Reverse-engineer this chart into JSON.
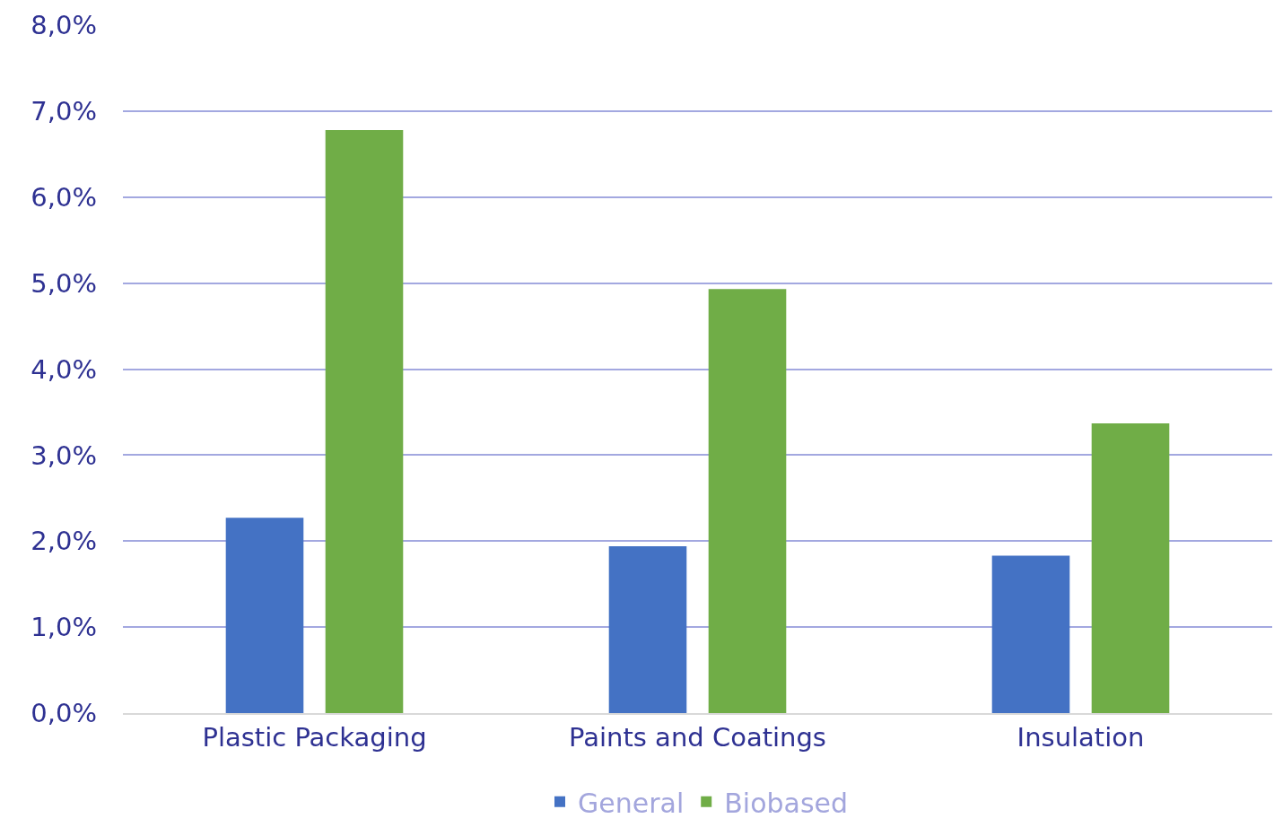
{
  "chart_data": {
    "type": "bar",
    "categories": [
      "Plastic Packaging",
      "Paints and Coatings",
      "Insulation"
    ],
    "series": [
      {
        "name": "General",
        "color": "#4472c4",
        "values": [
          2.27,
          1.94,
          1.83
        ]
      },
      {
        "name": "Biobased",
        "color": "#70ad47",
        "values": [
          6.78,
          4.93,
          3.37
        ]
      }
    ],
    "ylim": [
      0,
      8
    ],
    "yticks": [
      {
        "value": 0,
        "label": "0,0%"
      },
      {
        "value": 1,
        "label": "1,0%"
      },
      {
        "value": 2,
        "label": "2,0%"
      },
      {
        "value": 3,
        "label": "3,0%"
      },
      {
        "value": 4,
        "label": "4,0%"
      },
      {
        "value": 5,
        "label": "5,0%"
      },
      {
        "value": 6,
        "label": "6,0%"
      },
      {
        "value": 7,
        "label": "7,0%"
      },
      {
        "value": 8,
        "label": "8,0%"
      }
    ],
    "grid": "y",
    "legend": "bottom"
  }
}
